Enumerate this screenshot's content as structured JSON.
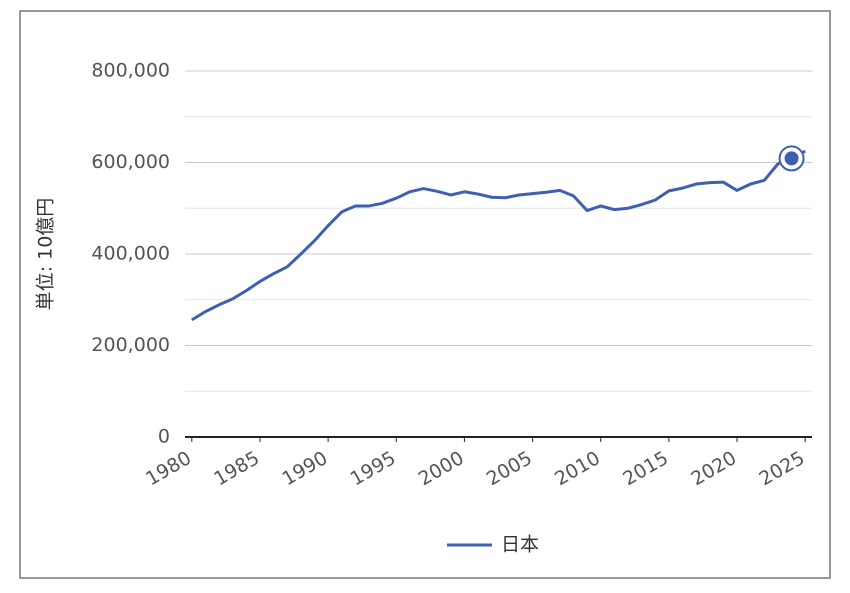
{
  "chart_data": {
    "type": "line",
    "y_label": "単位: 10億円",
    "x": [
      1980,
      1981,
      1982,
      1983,
      1984,
      1985,
      1986,
      1987,
      1988,
      1989,
      1990,
      1991,
      1992,
      1993,
      1994,
      1995,
      1996,
      1997,
      1998,
      1999,
      2000,
      2001,
      2002,
      2003,
      2004,
      2005,
      2006,
      2007,
      2008,
      2009,
      2010,
      2011,
      2012,
      2013,
      2014,
      2015,
      2016,
      2017,
      2018,
      2019,
      2020,
      2021,
      2022,
      2023,
      2024,
      2025
    ],
    "series": [
      {
        "name": "日本",
        "color": "#3f5fb0",
        "values": [
          256000,
          274000,
          289000,
          302000,
          320000,
          340000,
          357000,
          372000,
          400000,
          429000,
          462000,
          492000,
          505000,
          505000,
          511000,
          522000,
          536000,
          543000,
          537000,
          529000,
          536000,
          531000,
          524000,
          523000,
          529000,
          532000,
          535000,
          539000,
          527000,
          495000,
          505000,
          497000,
          500000,
          508000,
          518000,
          538000,
          544000,
          553000,
          556000,
          557000,
          539000,
          553000,
          561000,
          597000,
          609000,
          625000
        ]
      }
    ],
    "highlight_index": 44,
    "xlim": [
      1979.5,
      2025.5
    ],
    "xticks": [
      1980,
      1985,
      1990,
      1995,
      2000,
      2005,
      2010,
      2015,
      2020,
      2025
    ],
    "ylim": [
      0,
      800000
    ],
    "yticks": [
      {
        "value": 0,
        "label": "0"
      },
      {
        "value": 200000,
        "label": "200,000"
      },
      {
        "value": 400000,
        "label": "400,000"
      },
      {
        "value": 600000,
        "label": "600,000"
      },
      {
        "value": 800000,
        "label": "800,000"
      }
    ],
    "minor_yticks": [
      100000,
      300000,
      500000,
      700000
    ],
    "grid": true,
    "legend": "bottom"
  }
}
